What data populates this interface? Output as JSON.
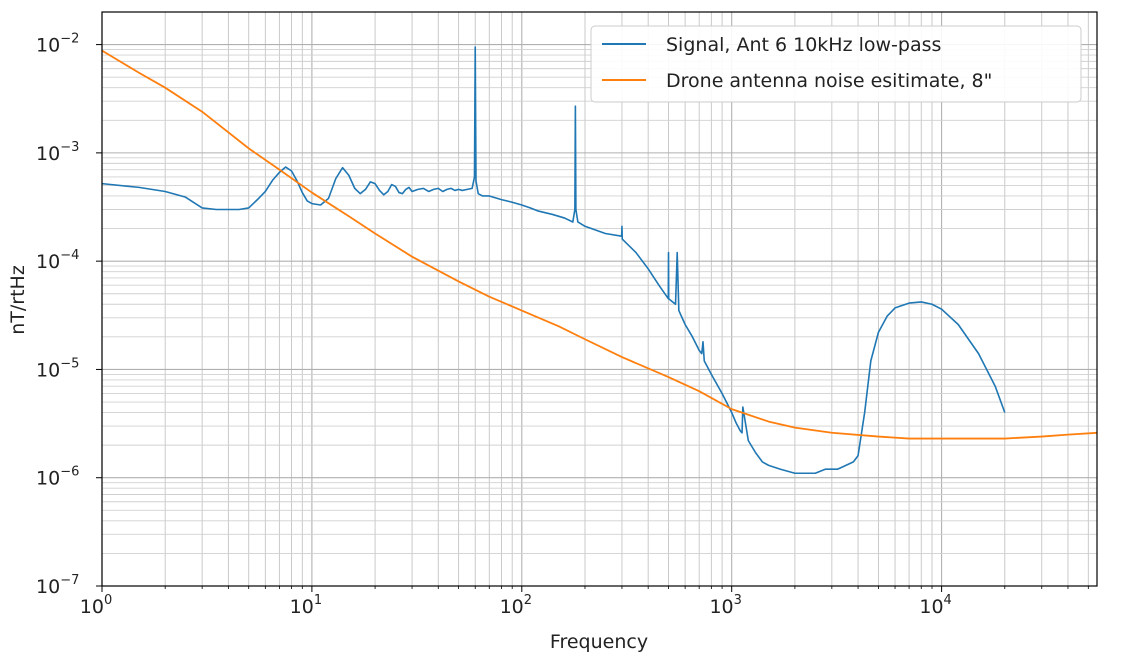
{
  "chart_data": {
    "type": "line",
    "title": "",
    "xlabel": "Frequency",
    "ylabel": "nT/rtHz",
    "xscale": "log",
    "yscale": "log",
    "xlim": [
      1,
      55000
    ],
    "ylim": [
      1e-07,
      0.02
    ],
    "grid": "major and minor",
    "legend_position": "top-right",
    "x_ticks": [
      {
        "base": "10",
        "exp": "0"
      },
      {
        "base": "10",
        "exp": "1"
      },
      {
        "base": "10",
        "exp": "2"
      },
      {
        "base": "10",
        "exp": "3"
      },
      {
        "base": "10",
        "exp": "4"
      }
    ],
    "y_ticks": [
      {
        "base": "10",
        "exp": "−7"
      },
      {
        "base": "10",
        "exp": "−6"
      },
      {
        "base": "10",
        "exp": "−5"
      },
      {
        "base": "10",
        "exp": "−4"
      },
      {
        "base": "10",
        "exp": "−3"
      },
      {
        "base": "10",
        "exp": "−2"
      }
    ],
    "series": [
      {
        "name": "Signal, Ant 6 10kHz low-pass",
        "color": "#1f77b4",
        "x": [
          1,
          1.5,
          2,
          2.5,
          3,
          3.5,
          4,
          4.5,
          5,
          5.5,
          6,
          6.5,
          7,
          7.5,
          8,
          8.5,
          9,
          9.5,
          10,
          11,
          12,
          13,
          14,
          15,
          16,
          17,
          18,
          19,
          20,
          21,
          22,
          23,
          24,
          25,
          26,
          27,
          28,
          29,
          30,
          32,
          34,
          36,
          38,
          40,
          42,
          44,
          46,
          48,
          50,
          52,
          55,
          58,
          59.5,
          60,
          60.5,
          62,
          65,
          70,
          80,
          90,
          100,
          110,
          120,
          140,
          160,
          175,
          179,
          180,
          181,
          185,
          200,
          250,
          299,
          300,
          301,
          350,
          400,
          450,
          499,
          500,
          501,
          540,
          550,
          560,
          600,
          650,
          700,
          720,
          730,
          740,
          800,
          900,
          1000,
          1050,
          1100,
          1120,
          1130,
          1200,
          1300,
          1400,
          1500,
          1700,
          2000,
          2200,
          2500,
          2800,
          3000,
          3200,
          3500,
          3800,
          4000,
          4300,
          4600,
          5000,
          5500,
          6000,
          7000,
          8000,
          9000,
          10000,
          12000,
          15000,
          18000,
          20000
        ],
        "y": [
          0.00052,
          0.00048,
          0.00044,
          0.00039,
          0.00031,
          0.0003,
          0.0003,
          0.0003,
          0.00031,
          0.00037,
          0.00044,
          0.00056,
          0.00066,
          0.00074,
          0.00068,
          0.00055,
          0.00043,
          0.00036,
          0.00034,
          0.00033,
          0.00038,
          0.00058,
          0.00073,
          0.00062,
          0.00047,
          0.00042,
          0.00046,
          0.00054,
          0.00052,
          0.00045,
          0.00041,
          0.00044,
          0.00051,
          0.00049,
          0.00043,
          0.00042,
          0.00046,
          0.00048,
          0.00044,
          0.00046,
          0.00047,
          0.00044,
          0.00046,
          0.00047,
          0.00044,
          0.00046,
          0.00047,
          0.00045,
          0.00046,
          0.00045,
          0.00046,
          0.00047,
          0.0006,
          0.0095,
          0.00055,
          0.00042,
          0.0004,
          0.0004,
          0.00037,
          0.00035,
          0.00033,
          0.00031,
          0.00029,
          0.00027,
          0.00025,
          0.00023,
          0.0003,
          0.0027,
          0.0003,
          0.00023,
          0.00021,
          0.00018,
          0.00017,
          0.00021,
          0.00016,
          0.00012,
          8.5e-05,
          6e-05,
          4.5e-05,
          0.00012,
          4.5e-05,
          4e-05,
          0.00012,
          3.5e-05,
          2.6e-05,
          2e-05,
          1.5e-05,
          1.4e-05,
          1.8e-05,
          1.2e-05,
          9e-06,
          6e-06,
          4e-06,
          3.2e-06,
          2.7e-06,
          2.6e-06,
          4.5e-06,
          2.2e-06,
          1.7e-06,
          1.4e-06,
          1.3e-06,
          1.2e-06,
          1.1e-06,
          1.1e-06,
          1.1e-06,
          1.2e-06,
          1.2e-06,
          1.2e-06,
          1.3e-06,
          1.4e-06,
          1.6e-06,
          4e-06,
          1.2e-05,
          2.2e-05,
          3.1e-05,
          3.7e-05,
          4.1e-05,
          4.2e-05,
          4e-05,
          3.6e-05,
          2.6e-05,
          1.4e-05,
          7e-06,
          4e-06
        ]
      },
      {
        "name": "Drone antenna noise esitimate, 8\"",
        "color": "#ff7f0e",
        "x": [
          1,
          1.5,
          2,
          3,
          5,
          7,
          10,
          15,
          20,
          30,
          50,
          70,
          100,
          150,
          200,
          300,
          500,
          700,
          1000,
          1500,
          2000,
          3000,
          5000,
          7000,
          10000,
          15000,
          20000,
          30000,
          40000,
          55000
        ],
        "y": [
          0.0088,
          0.0055,
          0.004,
          0.0024,
          0.0011,
          0.0007,
          0.00043,
          0.00026,
          0.00018,
          0.00011,
          6.5e-05,
          4.7e-05,
          3.5e-05,
          2.5e-05,
          1.9e-05,
          1.3e-05,
          8.5e-06,
          6.3e-06,
          4.3e-06,
          3.3e-06,
          2.9e-06,
          2.6e-06,
          2.4e-06,
          2.3e-06,
          2.3e-06,
          2.3e-06,
          2.3e-06,
          2.4e-06,
          2.5e-06,
          2.6e-06
        ]
      }
    ]
  }
}
